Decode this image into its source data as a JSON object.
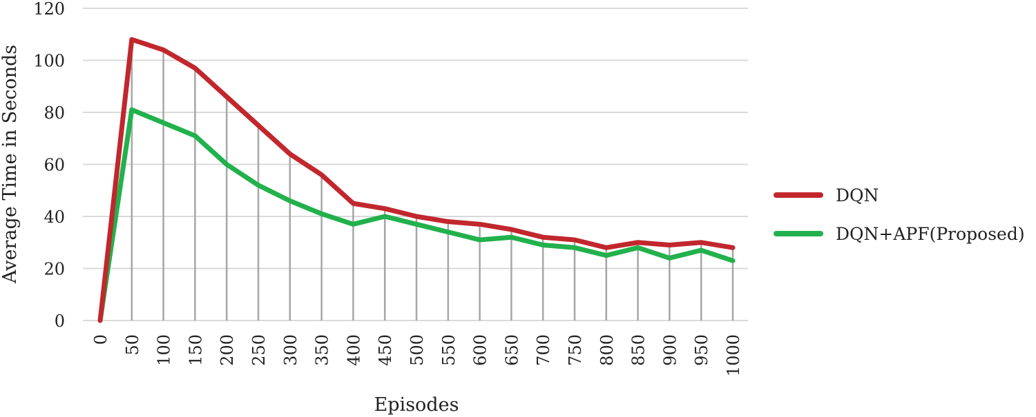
{
  "chart_data": {
    "type": "line",
    "title": "",
    "xlabel": "Episodes",
    "ylabel": "Average Time in Seconds",
    "x": [
      "0",
      "50",
      "100",
      "150",
      "200",
      "250",
      "300",
      "350",
      "400",
      "450",
      "500",
      "550",
      "600",
      "650",
      "700",
      "750",
      "800",
      "850",
      "900",
      "950",
      "1000"
    ],
    "ylim": [
      0,
      120
    ],
    "yticks": [
      0,
      20,
      40,
      60,
      80,
      100,
      120
    ],
    "grid": true,
    "legend_position": "right",
    "series": [
      {
        "name": "DQN",
        "color": "#c1272d",
        "values": [
          0,
          108,
          104,
          97,
          86,
          75,
          64,
          56,
          45,
          43,
          40,
          38,
          37,
          35,
          32,
          31,
          28,
          30,
          29,
          30,
          28
        ]
      },
      {
        "name": "DQN+APF(Proposed)",
        "color": "#22b14c",
        "values": [
          0,
          81,
          76,
          71,
          60,
          52,
          46,
          41,
          37,
          40,
          37,
          34,
          31,
          32,
          29,
          28,
          25,
          28,
          24,
          27,
          23
        ]
      }
    ]
  }
}
